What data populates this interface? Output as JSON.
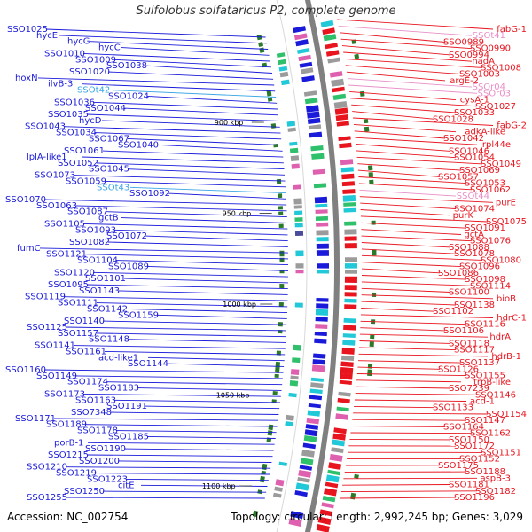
{
  "title": "Sulfolobus solfataricus P2, complete genome",
  "footer": {
    "accession": "Accession: NC_002754",
    "topology": "Topology: circular; Length: 2,992,245 bp; Genes: 3,029"
  },
  "colors": {
    "reverse_strand": "#1a1adb",
    "forward_strand": "#e8141e",
    "rna_reverse": "#3aa6e6",
    "rna_forward": "#e88fc8",
    "backbone": "#808080",
    "tick_mark": "#2a7a2a"
  },
  "ticks": [
    {
      "label": "900 kbp",
      "kbp": 900
    },
    {
      "label": "950 kbp",
      "kbp": 950
    },
    {
      "label": "1000 kbp",
      "kbp": 1000
    },
    {
      "label": "1050 kbp",
      "kbp": 1050
    },
    {
      "label": "1100 kbp",
      "kbp": 1100
    }
  ],
  "left_labels": [
    "SSO1025",
    "hycE",
    "hycG",
    "hycC",
    "SSO1010",
    "SSO1009",
    "SSO1038",
    "SSO1020",
    "hoxN",
    "ilvB-3",
    "SSOt42",
    "SSO1024",
    "SSO1036",
    "SSO1044",
    "SSO1035",
    "hycD",
    "SSO1043",
    "SSO1034",
    "SSO1067",
    "SSO1040",
    "SSO1061",
    "lplA-like1",
    "SSO1052",
    "SSO1045",
    "SSO1073",
    "SSO1059",
    "SSOt43",
    "SSO1092",
    "SSO1070",
    "SSO1063",
    "SSO1087",
    "gctB",
    "SSO1105",
    "SSO1093",
    "SSO1072",
    "SSO1082",
    "fumC",
    "SSO1121",
    "SSO1104",
    "SSO1089",
    "SSO1120",
    "SSO1101",
    "SSO1095",
    "SSO1143",
    "SSO1119",
    "SSO1111",
    "SSO1142",
    "SSO1159",
    "SSO1140",
    "SSO1125",
    "SSO1157",
    "SSO1148",
    "SSO1141",
    "SSO1161",
    "acd-like1",
    "SSO1144",
    "SSO1160",
    "SSO1149",
    "SSO1174",
    "SSO1183",
    "SSO1173",
    "SSO1163",
    "SSO1191",
    "SSO7348",
    "SSO1171",
    "SSO1189",
    "SSO1178",
    "SSO1185",
    "porB-1",
    "SSO1190",
    "SSO1215",
    "SSO1200",
    "SSO1210",
    "SSO1219",
    "SSO1223",
    "citE",
    "SSO1250",
    "SSO1255"
  ],
  "right_labels": [
    "fabG-1",
    "SSOt41",
    "SSO0989",
    "SSO0990",
    "SSO0994",
    "nadA",
    "SSO1008",
    "SSO1003",
    "argE-2",
    "SSOr04",
    "SSOr03",
    "cysA-1",
    "SSO1027",
    "SSO1033",
    "SSO1028",
    "fabG-2",
    "adkA-like",
    "SSO1042",
    "rpl44e",
    "SSO1046",
    "SSO1054",
    "SSO1049",
    "SSO1069",
    "SSO1057",
    "SSO1053",
    "SSO1062",
    "SSOt44",
    "purE",
    "SSO1074",
    "purK",
    "SSO1075",
    "SSO1091",
    "gctA",
    "SSO1076",
    "SSO1088",
    "SSO1078",
    "SSO1080",
    "SSO1096",
    "SSO1086",
    "SSO1098",
    "SSO1114",
    "SSO1100",
    "bioB",
    "SSO1138",
    "SSO1102",
    "hdrC-1",
    "SSO1116",
    "SSO1106",
    "hdrA",
    "SSO1118",
    "SSO1117",
    "hdrB-1",
    "SSO1137",
    "SSO1126",
    "SSO1155",
    "trpB-like",
    "SSO7239",
    "SSO1146",
    "acd-1",
    "SSO1133",
    "SSO1154",
    "SSO1147",
    "SSO1164",
    "SSO1162",
    "SSO1150",
    "SSO1172",
    "SSO1151",
    "SSO1152",
    "SSO1175",
    "SSO1188",
    "aspB-3",
    "SSO1181",
    "SSO1182",
    "SSO1196"
  ]
}
